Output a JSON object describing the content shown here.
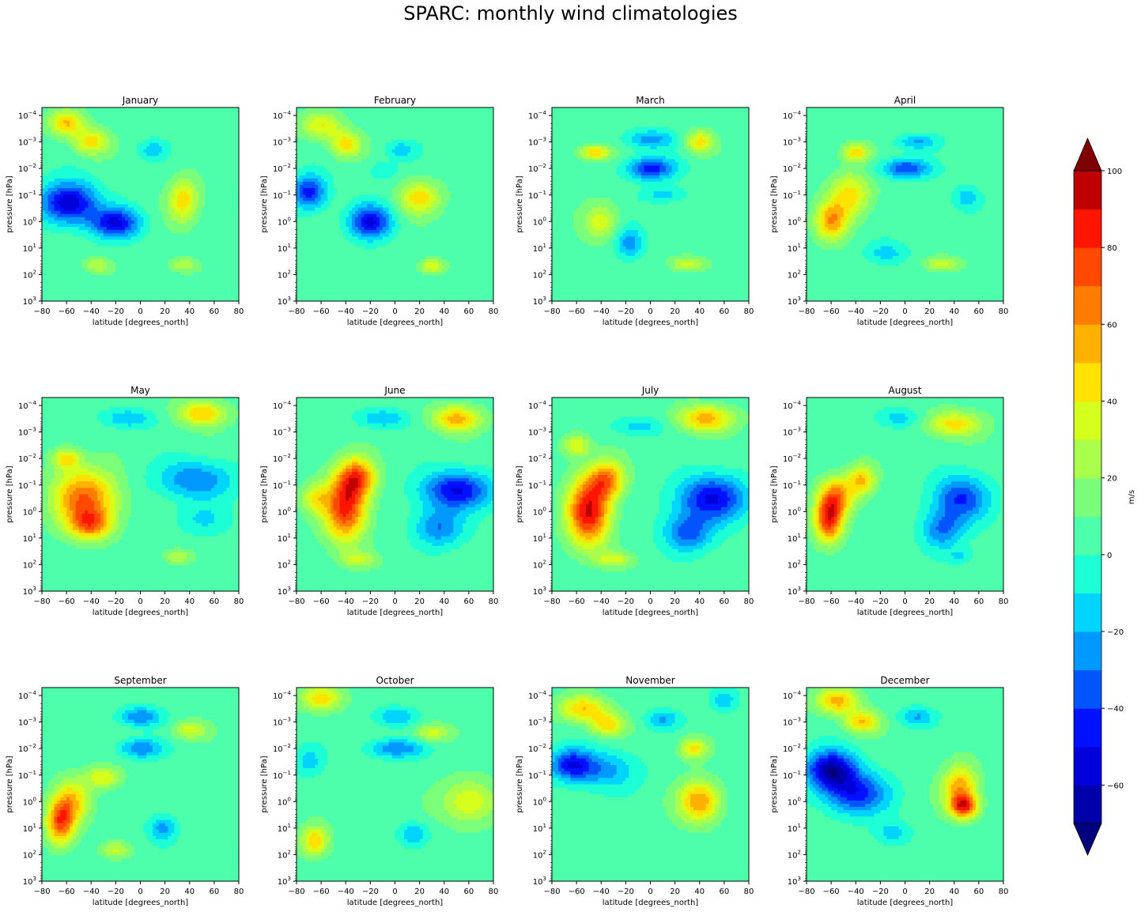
{
  "figure": {
    "title": "SPARC: monthly wind climatologies"
  },
  "chart_data": [
    {
      "type": "heatmap",
      "title": "January",
      "xlabel": "latitude [degrees_north]",
      "ylabel": "pressure [hPa]",
      "xlim": [
        -80,
        80
      ],
      "ylim_log10_hPa": [
        3,
        -4.3
      ],
      "y_scale": "log (inverted)",
      "xticks": [
        -80,
        -60,
        -40,
        -20,
        0,
        20,
        40,
        60,
        80
      ],
      "blobs": [
        [
          -58,
          -0.7,
          16,
          0.55,
          -65
        ],
        [
          -20,
          0.05,
          14,
          0.4,
          -55
        ],
        [
          -60,
          -3.7,
          10,
          0.35,
          45
        ],
        [
          -40,
          -3,
          10,
          0.35,
          40
        ],
        [
          35,
          -0.8,
          9,
          0.6,
          40
        ],
        [
          10,
          -2.7,
          8,
          0.25,
          -20
        ],
        [
          -35,
          1.65,
          8,
          0.2,
          25
        ],
        [
          35,
          1.65,
          8,
          0.2,
          25
        ]
      ]
    },
    {
      "type": "heatmap",
      "title": "February",
      "xlabel": "latitude [degrees_north]",
      "ylabel": "pressure [hPa]",
      "xlim": [
        -80,
        80
      ],
      "ylim_log10_hPa": [
        3,
        -4.3
      ],
      "y_scale": "log (inverted)",
      "blobs": [
        [
          -70,
          -1.1,
          10,
          0.45,
          -50
        ],
        [
          -20,
          0,
          12,
          0.45,
          -55
        ],
        [
          -60,
          -3.6,
          12,
          0.35,
          35
        ],
        [
          -40,
          -2.9,
          9,
          0.35,
          40
        ],
        [
          20,
          -0.9,
          12,
          0.45,
          40
        ],
        [
          5,
          -2.7,
          9,
          0.25,
          -20
        ],
        [
          -10,
          -1.9,
          8,
          0.25,
          -15
        ],
        [
          30,
          1.7,
          7,
          0.2,
          35
        ]
      ]
    },
    {
      "type": "heatmap",
      "title": "March",
      "xlabel": "latitude [degrees_north]",
      "ylabel": "pressure [hPa]",
      "xlim": [
        -80,
        80
      ],
      "ylim_log10_hPa": [
        3,
        -4.3
      ],
      "y_scale": "log (inverted)",
      "blobs": [
        [
          0,
          -2,
          14,
          0.3,
          -50
        ],
        [
          0,
          -3.1,
          14,
          0.25,
          -30
        ],
        [
          10,
          -1,
          12,
          0.2,
          -20
        ],
        [
          -17,
          0.8,
          8,
          0.4,
          -30
        ],
        [
          -45,
          -2.6,
          9,
          0.2,
          45
        ],
        [
          40,
          -3,
          8,
          0.3,
          40
        ],
        [
          -40,
          0,
          10,
          0.5,
          30
        ],
        [
          30,
          1.6,
          10,
          0.2,
          30
        ]
      ]
    },
    {
      "type": "heatmap",
      "title": "April",
      "xlabel": "latitude [degrees_north]",
      "ylabel": "pressure [hPa]",
      "xlim": [
        -80,
        80
      ],
      "ylim_log10_hPa": [
        3,
        -4.3
      ],
      "y_scale": "log (inverted)",
      "blobs": [
        [
          -60,
          0,
          9,
          0.5,
          50
        ],
        [
          -45,
          -1,
          12,
          0.6,
          40
        ],
        [
          0,
          -2,
          14,
          0.25,
          -45
        ],
        [
          10,
          -3,
          12,
          0.2,
          -25
        ],
        [
          -15,
          1.2,
          12,
          0.3,
          -20
        ],
        [
          -40,
          -2.6,
          8,
          0.25,
          40
        ],
        [
          50,
          -0.9,
          8,
          0.3,
          -20
        ],
        [
          30,
          1.6,
          10,
          0.2,
          30
        ]
      ]
    },
    {
      "type": "heatmap",
      "title": "May",
      "xlabel": "latitude [degrees_north]",
      "ylabel": "pressure [hPa]",
      "xlim": [
        -80,
        80
      ],
      "ylim_log10_hPa": [
        3,
        -4.3
      ],
      "y_scale": "log (inverted)",
      "blobs": [
        [
          -45,
          -0.5,
          18,
          0.75,
          65
        ],
        [
          -40,
          0.5,
          12,
          0.4,
          50
        ],
        [
          45,
          -1.2,
          22,
          0.5,
          -35
        ],
        [
          50,
          0.3,
          16,
          0.4,
          -15
        ],
        [
          50,
          -3.7,
          14,
          0.35,
          45
        ],
        [
          -10,
          -3.5,
          14,
          0.25,
          -25
        ],
        [
          -60,
          -2,
          8,
          0.3,
          40
        ],
        [
          30,
          1.7,
          8,
          0.2,
          25
        ]
      ]
    },
    {
      "type": "heatmap",
      "title": "June",
      "xlabel": "latitude [degrees_north]",
      "ylabel": "pressure [hPa]",
      "xlim": [
        -80,
        80
      ],
      "ylim_log10_hPa": [
        3,
        -4.3
      ],
      "y_scale": "log (inverted)",
      "blobs": [
        [
          -40,
          -0.2,
          12,
          0.9,
          80
        ],
        [
          -30,
          -1.3,
          10,
          0.5,
          55
        ],
        [
          50,
          -0.8,
          20,
          0.5,
          -55
        ],
        [
          35,
          0.6,
          14,
          0.5,
          -35
        ],
        [
          50,
          -3.5,
          14,
          0.35,
          50
        ],
        [
          -10,
          -3.5,
          14,
          0.25,
          -25
        ],
        [
          -65,
          -0.5,
          8,
          0.4,
          30
        ],
        [
          -30,
          1.8,
          10,
          0.2,
          25
        ]
      ]
    },
    {
      "type": "heatmap",
      "title": "July",
      "xlabel": "latitude [degrees_north]",
      "ylabel": "pressure [hPa]",
      "xlim": [
        -80,
        80
      ],
      "ylim_log10_hPa": [
        3,
        -4.3
      ],
      "y_scale": "log (inverted)",
      "blobs": [
        [
          -50,
          0,
          12,
          0.9,
          85
        ],
        [
          -35,
          -1.2,
          10,
          0.5,
          55
        ],
        [
          50,
          -0.5,
          20,
          0.6,
          -55
        ],
        [
          30,
          0.8,
          14,
          0.5,
          -40
        ],
        [
          45,
          -3.5,
          16,
          0.35,
          50
        ],
        [
          -10,
          -3.2,
          14,
          0.25,
          -20
        ],
        [
          -30,
          1.8,
          10,
          0.2,
          30
        ],
        [
          -60,
          -2.5,
          8,
          0.3,
          35
        ]
      ]
    },
    {
      "type": "heatmap",
      "title": "August",
      "xlabel": "latitude [degrees_north]",
      "ylabel": "pressure [hPa]",
      "xlim": [
        -80,
        80
      ],
      "ylim_log10_hPa": [
        3,
        -4.3
      ],
      "y_scale": "log (inverted)",
      "blobs": [
        [
          -62,
          0.3,
          8,
          0.6,
          75
        ],
        [
          -55,
          -0.6,
          10,
          0.5,
          50
        ],
        [
          -35,
          -1.2,
          8,
          0.4,
          45
        ],
        [
          45,
          -0.5,
          16,
          0.6,
          -45
        ],
        [
          30,
          0.7,
          12,
          0.5,
          -35
        ],
        [
          40,
          -3.3,
          16,
          0.35,
          40
        ],
        [
          -5,
          -3.5,
          12,
          0.25,
          -20
        ],
        [
          45,
          1.7,
          8,
          0.2,
          -15
        ]
      ]
    },
    {
      "type": "heatmap",
      "title": "September",
      "xlabel": "latitude [degrees_north]",
      "ylabel": "pressure [hPa]",
      "xlim": [
        -80,
        80
      ],
      "ylim_log10_hPa": [
        3,
        -4.3
      ],
      "y_scale": "log (inverted)",
      "blobs": [
        [
          -65,
          0.8,
          8,
          0.6,
          65
        ],
        [
          -55,
          0,
          10,
          0.6,
          40
        ],
        [
          0,
          -3.2,
          12,
          0.25,
          -35
        ],
        [
          0,
          -2,
          12,
          0.25,
          -35
        ],
        [
          18,
          1,
          8,
          0.35,
          -30
        ],
        [
          -30,
          -0.9,
          10,
          0.3,
          35
        ],
        [
          40,
          -2.7,
          10,
          0.25,
          30
        ],
        [
          -20,
          1.8,
          8,
          0.2,
          25
        ]
      ]
    },
    {
      "type": "heatmap",
      "title": "October",
      "xlabel": "latitude [degrees_north]",
      "ylabel": "pressure [hPa]",
      "xlim": [
        -80,
        80
      ],
      "ylim_log10_hPa": [
        3,
        -4.3
      ],
      "y_scale": "log (inverted)",
      "blobs": [
        [
          -65,
          1.5,
          8,
          0.4,
          45
        ],
        [
          -70,
          -1.5,
          8,
          0.4,
          -20
        ],
        [
          0,
          -2,
          16,
          0.25,
          -35
        ],
        [
          0,
          -3.2,
          12,
          0.25,
          -25
        ],
        [
          15,
          1.2,
          8,
          0.3,
          -25
        ],
        [
          -60,
          -3.9,
          12,
          0.35,
          40
        ],
        [
          60,
          0,
          16,
          0.6,
          35
        ],
        [
          30,
          -2.6,
          10,
          0.25,
          30
        ]
      ]
    },
    {
      "type": "heatmap",
      "title": "November",
      "xlabel": "latitude [degrees_north]",
      "ylabel": "pressure [hPa]",
      "xlim": [
        -80,
        80
      ],
      "ylim_log10_hPa": [
        3,
        -4.3
      ],
      "y_scale": "log (inverted)",
      "blobs": [
        [
          -65,
          -1.4,
          12,
          0.4,
          -45
        ],
        [
          -40,
          -1.2,
          20,
          0.5,
          -30
        ],
        [
          40,
          0,
          12,
          0.55,
          55
        ],
        [
          35,
          -2,
          8,
          0.3,
          40
        ],
        [
          -55,
          -3.5,
          14,
          0.35,
          45
        ],
        [
          -35,
          -2.9,
          10,
          0.3,
          40
        ],
        [
          10,
          -3.1,
          10,
          0.25,
          -25
        ],
        [
          60,
          -3.8,
          8,
          0.3,
          -20
        ]
      ]
    },
    {
      "type": "heatmap",
      "title": "December",
      "xlabel": "latitude [degrees_north]",
      "ylabel": "pressure [hPa]",
      "xlim": [
        -80,
        80
      ],
      "ylim_log10_hPa": [
        3,
        -4.3
      ],
      "y_scale": "log (inverted)",
      "blobs": [
        [
          -60,
          -1.2,
          14,
          0.5,
          -70
        ],
        [
          -40,
          -0.3,
          18,
          0.55,
          -50
        ],
        [
          45,
          -0.5,
          10,
          0.6,
          55
        ],
        [
          48,
          0.2,
          8,
          0.3,
          65
        ],
        [
          -55,
          -3.8,
          12,
          0.35,
          50
        ],
        [
          -35,
          -3,
          10,
          0.3,
          45
        ],
        [
          10,
          -3.2,
          10,
          0.25,
          -25
        ],
        [
          -10,
          1.2,
          10,
          0.3,
          -20
        ]
      ]
    }
  ],
  "colorbar": {
    "label": "m/s",
    "levels": [
      -70,
      -60,
      -50,
      -40,
      -30,
      -20,
      -10,
      0,
      10,
      20,
      30,
      40,
      50,
      60,
      70,
      80,
      90,
      100
    ],
    "ticks": [
      -60,
      -40,
      -20,
      0,
      20,
      40,
      60,
      80,
      100
    ],
    "tick_labels": [
      "−60",
      "−40",
      "−20",
      "0",
      "20",
      "40",
      "60",
      "80",
      "100"
    ],
    "colors": [
      "#0000aa",
      "#0000dd",
      "#0011ff",
      "#0055ff",
      "#0099ff",
      "#00d5ff",
      "#1dffd5",
      "#4dffaa",
      "#7bff7b",
      "#aaff4d",
      "#d5ff1d",
      "#ffe200",
      "#ffb100",
      "#ff7c00",
      "#ff4800",
      "#ff1500",
      "#bf0000"
    ],
    "under_color": "#00007f",
    "over_color": "#7f0000"
  },
  "axis_text": {
    "ylabel": "pressure [hPa]",
    "xlabel": "latitude [degrees_north]",
    "xtick_labels": [
      "−80",
      "−60",
      "−40",
      "−20",
      "0",
      "20",
      "40",
      "60",
      "80"
    ],
    "ytick_mantissa": "10",
    "ytick_exponents": [
      "−4",
      "−3",
      "−2",
      "−1",
      "0",
      "1",
      "2",
      "3"
    ]
  }
}
